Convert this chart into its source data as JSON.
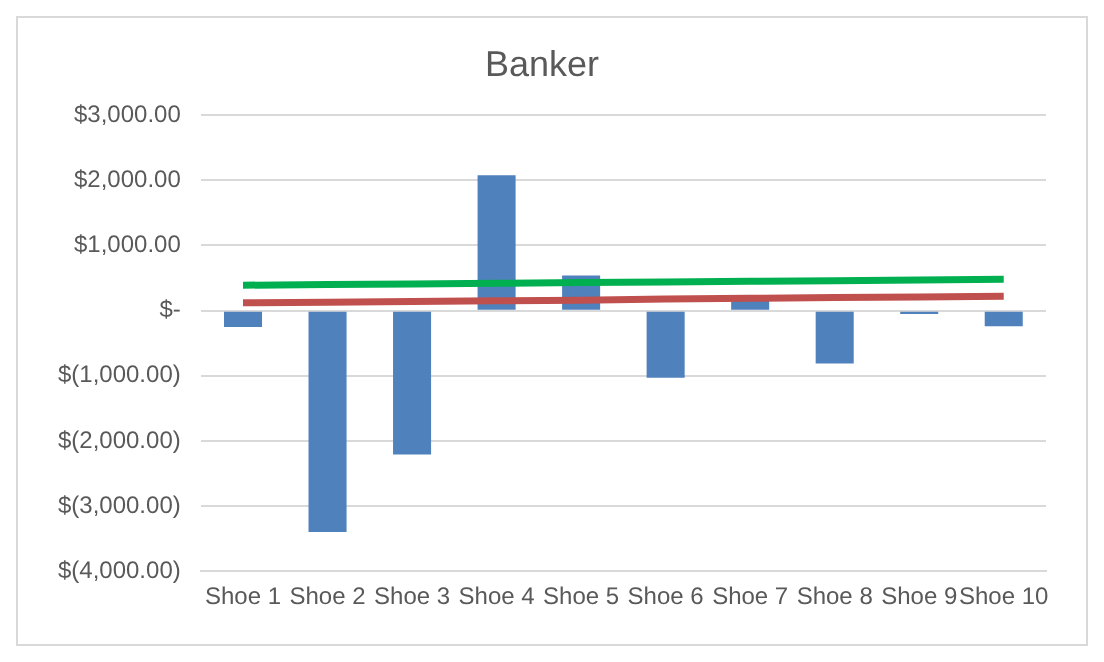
{
  "chart_data": {
    "type": "bar",
    "title": "Banker",
    "categories": [
      "Shoe 1",
      "Shoe 2",
      "Shoe 3",
      "Shoe 4",
      "Shoe 5",
      "Shoe 6",
      "Shoe 7",
      "Shoe 8",
      "Shoe 9",
      "Shoe 10"
    ],
    "series": [
      {
        "color": "#4f81bd",
        "values": [
          -250,
          -3400,
          -2210,
          2080,
          540,
          -1030,
          150,
          -810,
          -50,
          -240
        ]
      },
      {
        "type": "line",
        "color": "#00b050",
        "values": [
          390,
          400,
          410,
          420,
          430,
          440,
          450,
          460,
          470,
          480
        ]
      },
      {
        "type": "line",
        "color": "#c0504d",
        "values": [
          120,
          130,
          140,
          150,
          160,
          180,
          190,
          200,
          210,
          220
        ]
      }
    ],
    "ylim": [
      -4000,
      3000
    ],
    "yticks": [
      {
        "value": -4000,
        "label": "$(4,000.00)"
      },
      {
        "value": -3000,
        "label": "$(3,000.00)"
      },
      {
        "value": -2000,
        "label": "$(2,000.00)"
      },
      {
        "value": -1000,
        "label": "$(1,000.00)"
      },
      {
        "value": 0,
        "label": "$-"
      },
      {
        "value": 1000,
        "label": "$1,000.00"
      },
      {
        "value": 2000,
        "label": "$2,000.00"
      },
      {
        "value": 3000,
        "label": "$3,000.00"
      }
    ],
    "grid": "y",
    "legend": false,
    "marker": "none"
  }
}
